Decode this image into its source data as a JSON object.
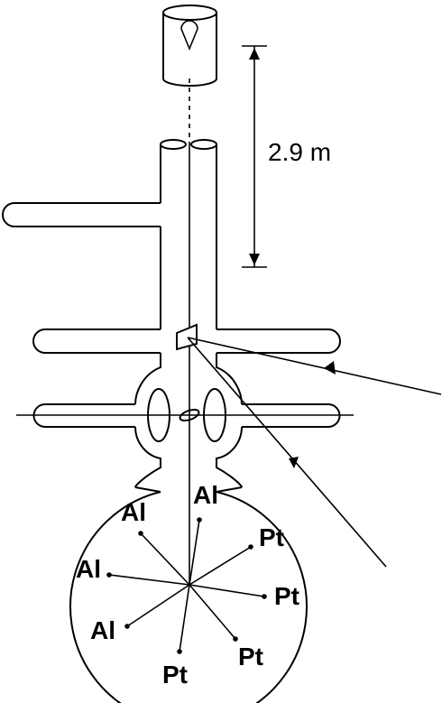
{
  "dimension": {
    "label": "2.9 m"
  },
  "arms": [
    {
      "metal": "Al"
    },
    {
      "metal": "Al"
    },
    {
      "metal": "Al"
    },
    {
      "metal": "Al"
    },
    {
      "metal": "Pt"
    },
    {
      "metal": "Pt"
    },
    {
      "metal": "Pt"
    },
    {
      "metal": "Pt"
    }
  ]
}
